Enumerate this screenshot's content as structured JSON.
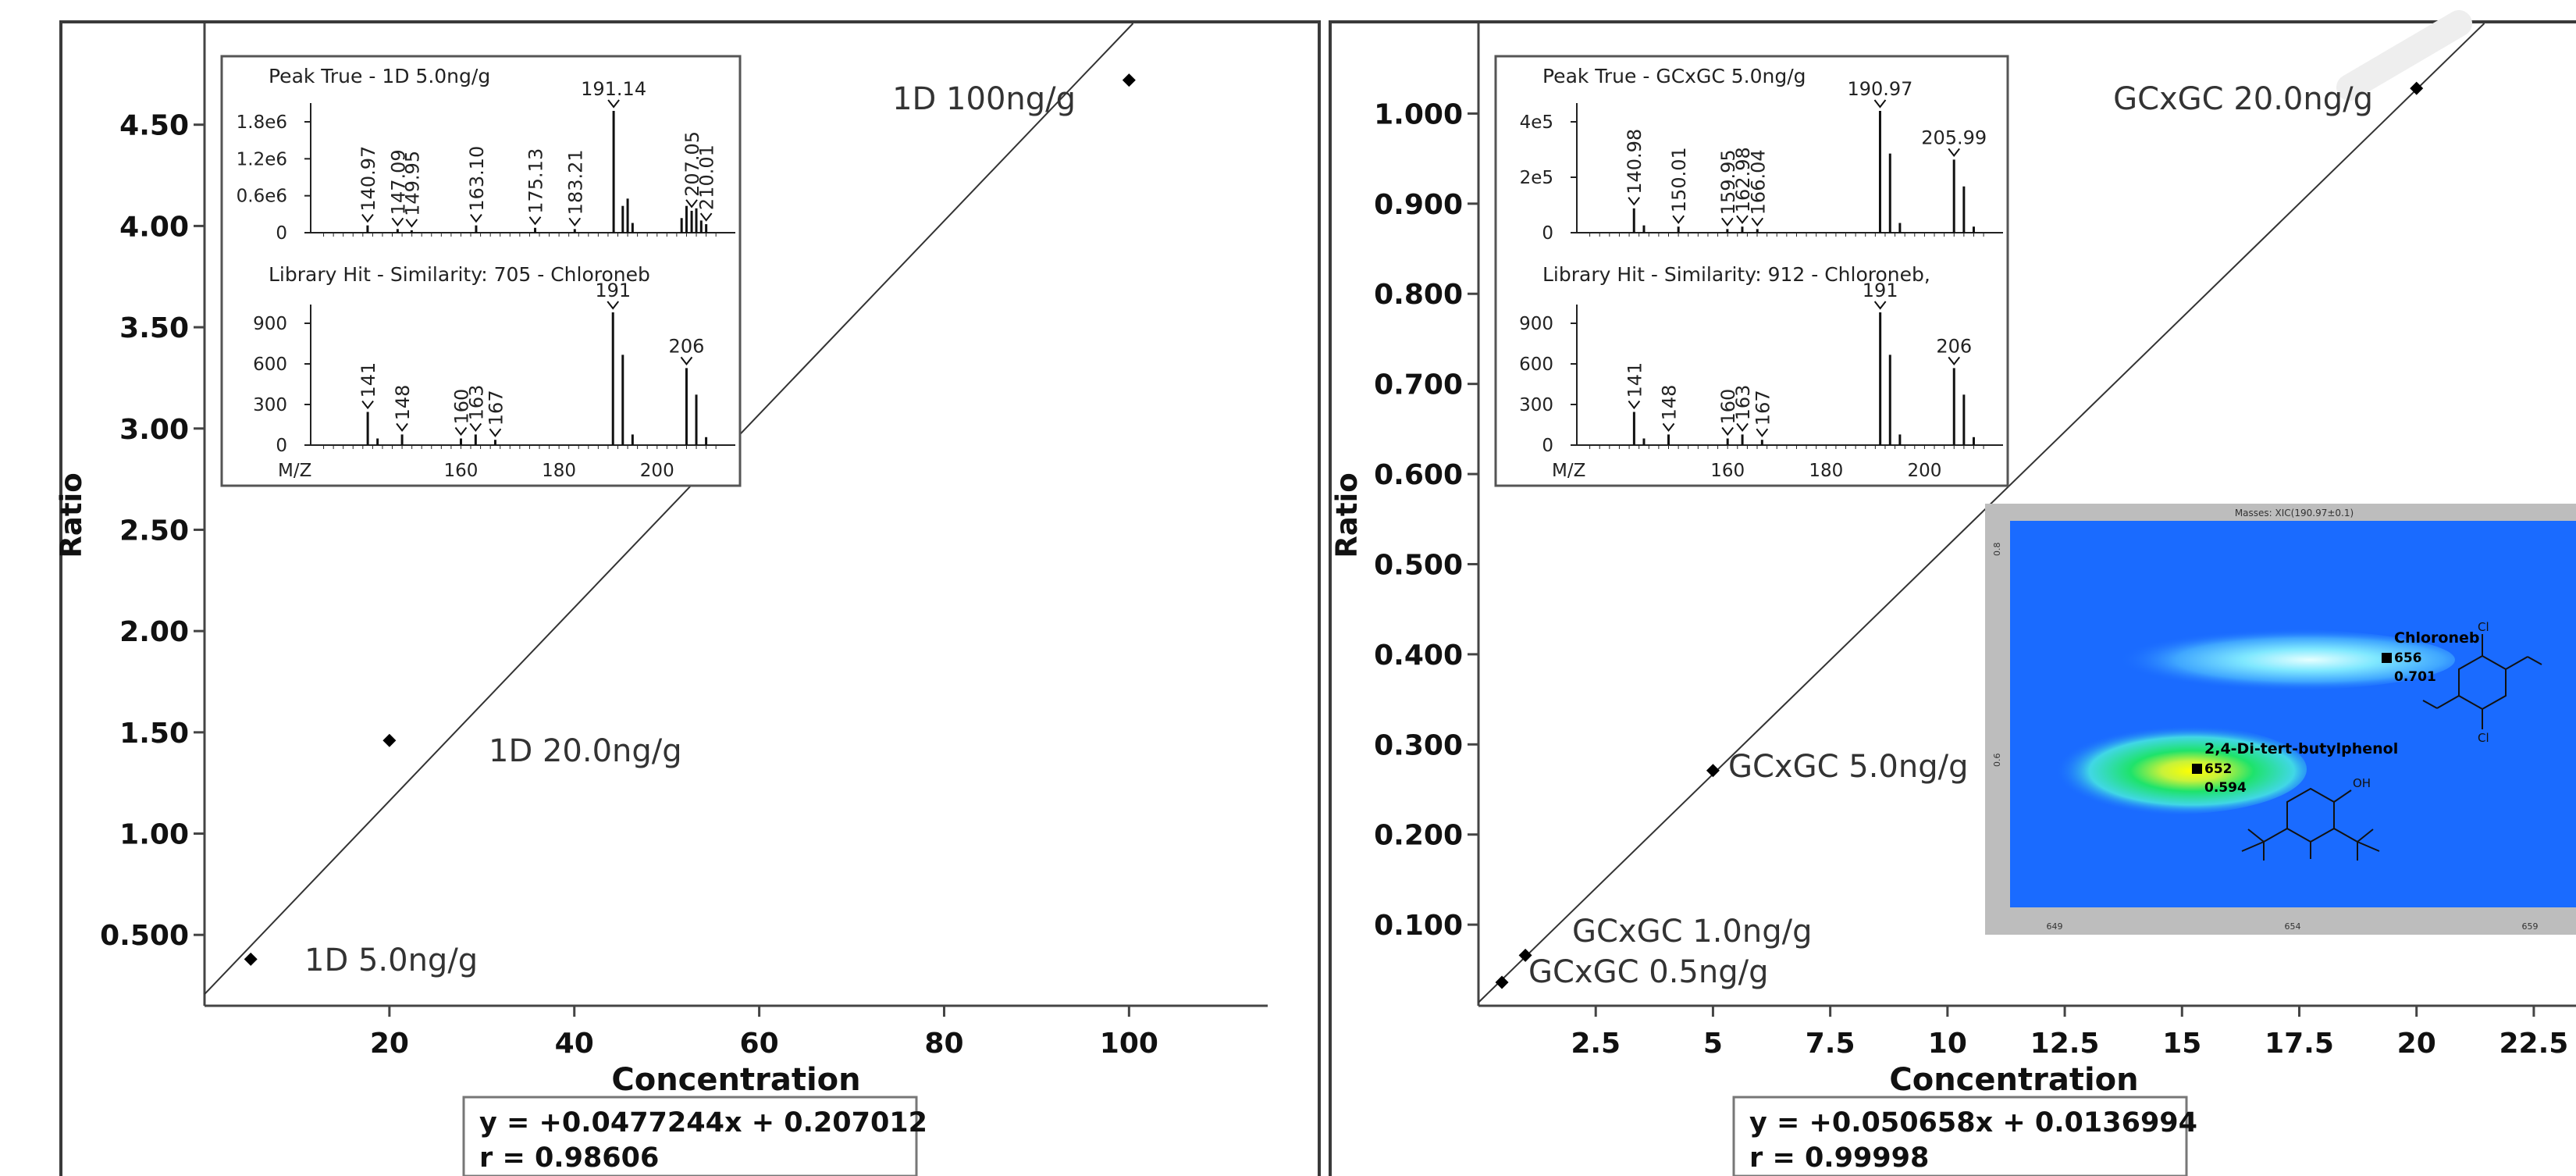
{
  "chart_data": [
    {
      "type": "scatter",
      "xlabel": "Concentration",
      "ylabel": "Ratio",
      "x_ticks": [
        "20",
        "40",
        "60",
        "80",
        "100"
      ],
      "y_ticks": [
        "0.500",
        "1.00",
        "1.50",
        "2.00",
        "2.50",
        "3.00",
        "3.50",
        "4.00",
        "4.50"
      ],
      "xlim": [
        0,
        115
      ],
      "ylim": [
        0.15,
        5.0
      ],
      "points": [
        {
          "x": 5,
          "y": 0.38,
          "label": "1D 5.0ng/g"
        },
        {
          "x": 20,
          "y": 1.46,
          "label": "1D 20.0ng/g"
        },
        {
          "x": 100,
          "y": 4.72,
          "label": "1D 100ng/g"
        }
      ],
      "fit": {
        "slope": 0.0477244,
        "intercept": 0.207012
      },
      "equation": "y = +0.0477244x + 0.207012",
      "r": "r = 0.98606",
      "inset": {
        "top": {
          "title": "Peak True - 1D 5.0ng/g",
          "y_ticks": [
            "1.8e6",
            "1.2e6",
            "0.6e6",
            "0"
          ],
          "peak_labels": [
            {
              "mz": 140.97,
              "text": "140.97",
              "rel": 0.06
            },
            {
              "mz": 147.09,
              "text": "147.09",
              "rel": 0.03
            },
            {
              "mz": 149.95,
              "text": "149.95",
              "rel": 0.02
            },
            {
              "mz": 163.1,
              "text": "163.10",
              "rel": 0.06
            },
            {
              "mz": 175.13,
              "text": "175.13",
              "rel": 0.04
            },
            {
              "mz": 183.21,
              "text": "183.21",
              "rel": 0.03
            },
            {
              "mz": 191.14,
              "text": "191.14",
              "rel": 1.0
            },
            {
              "mz": 207.05,
              "text": "207.05",
              "rel": 0.18
            },
            {
              "mz": 210.01,
              "text": "210.01",
              "rel": 0.07
            }
          ],
          "other_peaks": [
            [
              193,
              0.22
            ],
            [
              194,
              0.28
            ],
            [
              195,
              0.08
            ],
            [
              205,
              0.12
            ],
            [
              206,
              0.22
            ],
            [
              208,
              0.2
            ],
            [
              209,
              0.1
            ]
          ]
        },
        "bottom": {
          "title": "Library Hit - Similarity: 705 - Chloroneb",
          "y_ticks": [
            "900",
            "600",
            "300",
            "0"
          ],
          "x_ticks": [
            "160",
            "180",
            "200"
          ],
          "x_axis_label": "M/Z",
          "peak_labels": [
            {
              "mz": 141,
              "text": "141",
              "rel": 0.25
            },
            {
              "mz": 148,
              "text": "148",
              "rel": 0.08
            },
            {
              "mz": 160,
              "text": "160",
              "rel": 0.05
            },
            {
              "mz": 163,
              "text": "163",
              "rel": 0.08
            },
            {
              "mz": 167,
              "text": "167",
              "rel": 0.04
            },
            {
              "mz": 191,
              "text": "191",
              "rel": 1.0
            },
            {
              "mz": 206,
              "text": "206",
              "rel": 0.58
            }
          ],
          "other_peaks": [
            [
              143,
              0.05
            ],
            [
              193,
              0.68
            ],
            [
              195,
              0.08
            ],
            [
              208,
              0.38
            ],
            [
              210,
              0.06
            ]
          ]
        }
      }
    },
    {
      "type": "scatter",
      "xlabel": "Concentration",
      "ylabel": "Ratio",
      "x_ticks": [
        "2.5",
        "5",
        "7.5",
        "10",
        "12.5",
        "15",
        "17.5",
        "20",
        "22.5"
      ],
      "y_ticks": [
        "0.100",
        "0.200",
        "0.300",
        "0.400",
        "0.500",
        "0.600",
        "0.700",
        "0.800",
        "0.900",
        "1.000"
      ],
      "xlim": [
        0,
        23.4
      ],
      "ylim": [
        0.01,
        1.1
      ],
      "points": [
        {
          "x": 0.5,
          "y": 0.036,
          "label": "GCxGC 0.5ng/g"
        },
        {
          "x": 1.0,
          "y": 0.066,
          "label": "GCxGC 1.0ng/g"
        },
        {
          "x": 5.0,
          "y": 0.271,
          "label": "GCxGC 5.0ng/g"
        },
        {
          "x": 20.0,
          "y": 1.028,
          "label": "GCxGC 20.0ng/g"
        }
      ],
      "fit": {
        "slope": 0.050658,
        "intercept": 0.0136994
      },
      "equation": "y = +0.050658x + 0.0136994",
      "r": "r = 0.99998",
      "inset": {
        "top": {
          "title": "Peak True - GCxGC 5.0ng/g",
          "y_ticks": [
            "4e5",
            "2e5",
            "0"
          ],
          "peak_labels": [
            {
              "mz": 140.98,
              "text": "140.98",
              "rel": 0.2
            },
            {
              "mz": 150.01,
              "text": "150.01",
              "rel": 0.05
            },
            {
              "mz": 159.95,
              "text": "159.95",
              "rel": 0.03
            },
            {
              "mz": 162.98,
              "text": "162.98",
              "rel": 0.05
            },
            {
              "mz": 166.04,
              "text": "166.04",
              "rel": 0.03
            },
            {
              "mz": 190.97,
              "text": "190.97",
              "rel": 1.0
            },
            {
              "mz": 205.99,
              "text": "205.99",
              "rel": 0.6
            }
          ],
          "other_peaks": [
            [
              143,
              0.06
            ],
            [
              193,
              0.65
            ],
            [
              195,
              0.08
            ],
            [
              208,
              0.38
            ],
            [
              210,
              0.05
            ]
          ]
        },
        "bottom": {
          "title": "Library Hit - Similarity: 912 - Chloroneb,",
          "y_ticks": [
            "900",
            "600",
            "300",
            "0"
          ],
          "x_ticks": [
            "160",
            "180",
            "200"
          ],
          "x_axis_label": "M/Z",
          "peak_labels": [
            {
              "mz": 141,
              "text": "141",
              "rel": 0.25
            },
            {
              "mz": 148,
              "text": "148",
              "rel": 0.08
            },
            {
              "mz": 160,
              "text": "160",
              "rel": 0.05
            },
            {
              "mz": 163,
              "text": "163",
              "rel": 0.08
            },
            {
              "mz": 167,
              "text": "167",
              "rel": 0.04
            },
            {
              "mz": 191,
              "text": "191",
              "rel": 1.0
            },
            {
              "mz": 206,
              "text": "206",
              "rel": 0.58
            }
          ],
          "other_peaks": [
            [
              143,
              0.05
            ],
            [
              193,
              0.68
            ],
            [
              195,
              0.08
            ],
            [
              208,
              0.38
            ],
            [
              210,
              0.06
            ]
          ]
        }
      },
      "contour": {
        "title": "Masses: XIC(190.97±0.1)",
        "x_ticks": [
          "649",
          "654",
          "659"
        ],
        "y_ticks": [
          "0.8",
          "0.6"
        ],
        "compounds": [
          {
            "name": "Chloroneb",
            "value1": "656",
            "value2": "0.701"
          },
          {
            "name": "2,4-Di-tert-butylphenol",
            "value1": "652",
            "value2": "0.594"
          }
        ],
        "structure_labels": [
          "Cl",
          "Cl",
          "OH"
        ],
        "colors": {
          "background": "#1a6bff",
          "peak_core": "#ffff00",
          "peak_mid": "#1ee36b",
          "halo": "#7fe8ff"
        }
      }
    }
  ]
}
